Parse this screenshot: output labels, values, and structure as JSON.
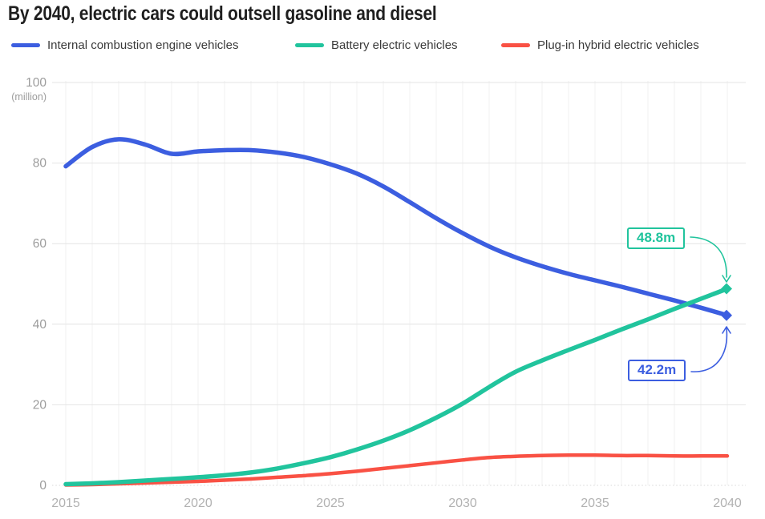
{
  "title": "By 2040, electric cars could outsell gasoline and diesel",
  "legend": {
    "items": [
      {
        "label": "Internal combustion engine vehicles",
        "color": "#3c5ee0"
      },
      {
        "label": "Battery electric vehicles",
        "color": "#21c49d"
      },
      {
        "label": "Plug-in hybrid electric vehicles",
        "color": "#f95144"
      }
    ]
  },
  "chart_data": {
    "type": "line",
    "title": "By 2040, electric cars could outsell gasoline and diesel",
    "unit_label": "(million)",
    "xlim": [
      2015,
      2040
    ],
    "ylim": [
      0,
      100
    ],
    "x_ticks": [
      2015,
      2020,
      2025,
      2030,
      2035,
      2040
    ],
    "y_ticks": [
      0,
      20,
      40,
      60,
      80,
      100
    ],
    "grid": "horizontal major lines + faint vertical yearly lines, zero baseline dotted",
    "legend_position": "top",
    "x": [
      2015,
      2016,
      2017,
      2018,
      2019,
      2020,
      2021,
      2022,
      2023,
      2024,
      2025,
      2026,
      2027,
      2028,
      2029,
      2030,
      2031,
      2032,
      2033,
      2034,
      2035,
      2036,
      2037,
      2038,
      2039,
      2040
    ],
    "series": [
      {
        "name": "Internal combustion engine vehicles",
        "color": "#3c5ee0",
        "values": [
          79.2,
          84.0,
          85.9,
          84.6,
          82.3,
          82.9,
          83.2,
          83.2,
          82.6,
          81.5,
          79.7,
          77.4,
          74.2,
          70.3,
          66.3,
          62.6,
          59.3,
          56.6,
          54.4,
          52.5,
          50.9,
          49.3,
          47.6,
          45.9,
          44.1,
          42.2
        ],
        "end_marker": "diamond"
      },
      {
        "name": "Battery electric vehicles",
        "color": "#21c49d",
        "values": [
          0.3,
          0.5,
          0.8,
          1.2,
          1.6,
          2.0,
          2.5,
          3.2,
          4.2,
          5.5,
          7.0,
          8.9,
          11.1,
          13.7,
          16.8,
          20.3,
          24.4,
          28.2,
          31.0,
          33.6,
          36.1,
          38.7,
          41.2,
          43.8,
          46.3,
          48.8
        ],
        "end_marker": "diamond"
      },
      {
        "name": "Plug-in hybrid electric vehicles",
        "color": "#f95144",
        "values": [
          0.1,
          0.2,
          0.4,
          0.6,
          0.8,
          1.0,
          1.3,
          1.6,
          2.0,
          2.4,
          2.9,
          3.5,
          4.2,
          4.9,
          5.6,
          6.3,
          6.9,
          7.2,
          7.4,
          7.5,
          7.5,
          7.4,
          7.4,
          7.3,
          7.3,
          7.3
        ],
        "end_marker": "none"
      }
    ],
    "annotations": [
      {
        "text": "48.8m",
        "series": "Battery electric vehicles",
        "year": 2040,
        "value": 48.8,
        "color": "#21c49d"
      },
      {
        "text": "42.2m",
        "series": "Internal combustion engine vehicles",
        "year": 2040,
        "value": 42.2,
        "color": "#3c5ee0"
      }
    ]
  },
  "axis": {
    "y_tick_labels": [
      "100",
      "80",
      "60",
      "40",
      "20",
      "0"
    ],
    "x_tick_labels": [
      "2015",
      "2020",
      "2025",
      "2030",
      "2035",
      "2040"
    ]
  },
  "colors": {
    "title_text": "#1f1f1f",
    "legend_text": "#3a3a3a",
    "y_tick_text": "#9c9c9c",
    "x_tick_text": "#b2b2b2",
    "gridline_major": "#e4e4e4",
    "gridline_minor_vertical": "#f2f2f2",
    "zero_baseline": "#d8d8d8",
    "background": "#ffffff"
  }
}
